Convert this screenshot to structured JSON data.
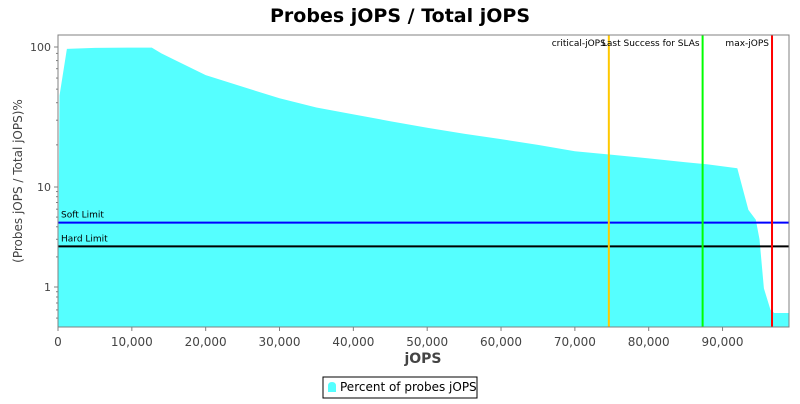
{
  "chart_data": {
    "type": "area",
    "title": "Probes jOPS / Total jOPS",
    "xlabel": "jOPS",
    "ylabel": "(Probes jOPS / Total jOPS)%",
    "xlim": [
      0,
      99000
    ],
    "ylim": [
      0.41,
      122
    ],
    "y_scale": "log",
    "grid": false,
    "legend_placement": "bottom",
    "x_ticks": [
      0,
      10000,
      20000,
      30000,
      40000,
      50000,
      60000,
      70000,
      80000,
      90000
    ],
    "x_tick_labels": [
      "0",
      "10,000",
      "20,000",
      "30,000",
      "40,000",
      "50,000",
      "60,000",
      "70,000",
      "80,000",
      "90,000"
    ],
    "y_ticks": [
      1,
      10,
      100
    ],
    "y_tick_labels": [
      "1",
      "10",
      "100"
    ],
    "series": [
      {
        "name": "Percent of probes jOPS",
        "color": "#55ffff",
        "x": [
          0,
          200,
          1200,
          5000,
          10000,
          12700,
          14000,
          16000,
          20000,
          25000,
          30000,
          35000,
          40000,
          45000,
          50000,
          55000,
          60000,
          65000,
          70000,
          75000,
          80000,
          85000,
          88000,
          92000,
          93500,
          94500,
          95000,
          95600,
          96500,
          97000,
          99000
        ],
        "y": [
          0.41,
          45,
          97,
          98.5,
          99,
          99,
          90,
          80,
          63,
          52,
          43,
          37,
          33,
          29.5,
          26.5,
          24,
          22,
          20,
          18,
          17,
          16,
          15,
          14.5,
          13.6,
          5.9,
          4.7,
          3.0,
          0.97,
          0.6,
          0.56,
          0.56
        ]
      }
    ],
    "horizontal_markers": [
      {
        "label": "Soft Limit",
        "value": 4.4,
        "color": "#0000ff"
      },
      {
        "label": "Hard Limit",
        "value": 2.55,
        "color": "#000000"
      }
    ],
    "vertical_markers": [
      {
        "label": "critical-jOPS",
        "value": 74600,
        "color": "#ffc800"
      },
      {
        "label": "Last Success for SLAs",
        "value": 87300,
        "color": "#00ff00"
      },
      {
        "label": "max-jOPS",
        "value": 96700,
        "color": "#ff0000"
      }
    ]
  }
}
